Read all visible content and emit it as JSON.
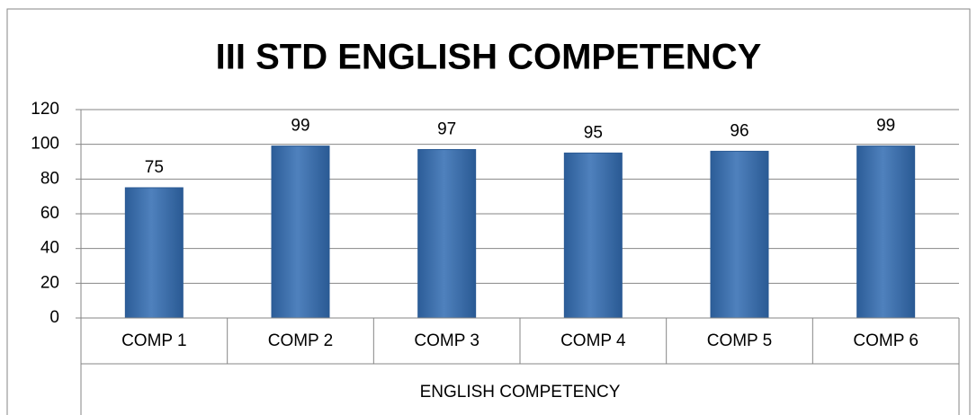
{
  "chart_data": {
    "type": "bar",
    "title": "III STD ENGLISH COMPETENCY",
    "categories": [
      "COMP 1",
      "COMP 2",
      "COMP 3",
      "COMP 4",
      "COMP 5",
      "COMP 6"
    ],
    "values": [
      75,
      99,
      97,
      95,
      96,
      99
    ],
    "color": "#4f81bd",
    "x_label": "ENGLISH COMPETENCY",
    "ylim": [
      0,
      120
    ],
    "yticks": [
      0,
      20,
      40,
      60,
      80,
      100,
      120
    ],
    "grid": true
  }
}
